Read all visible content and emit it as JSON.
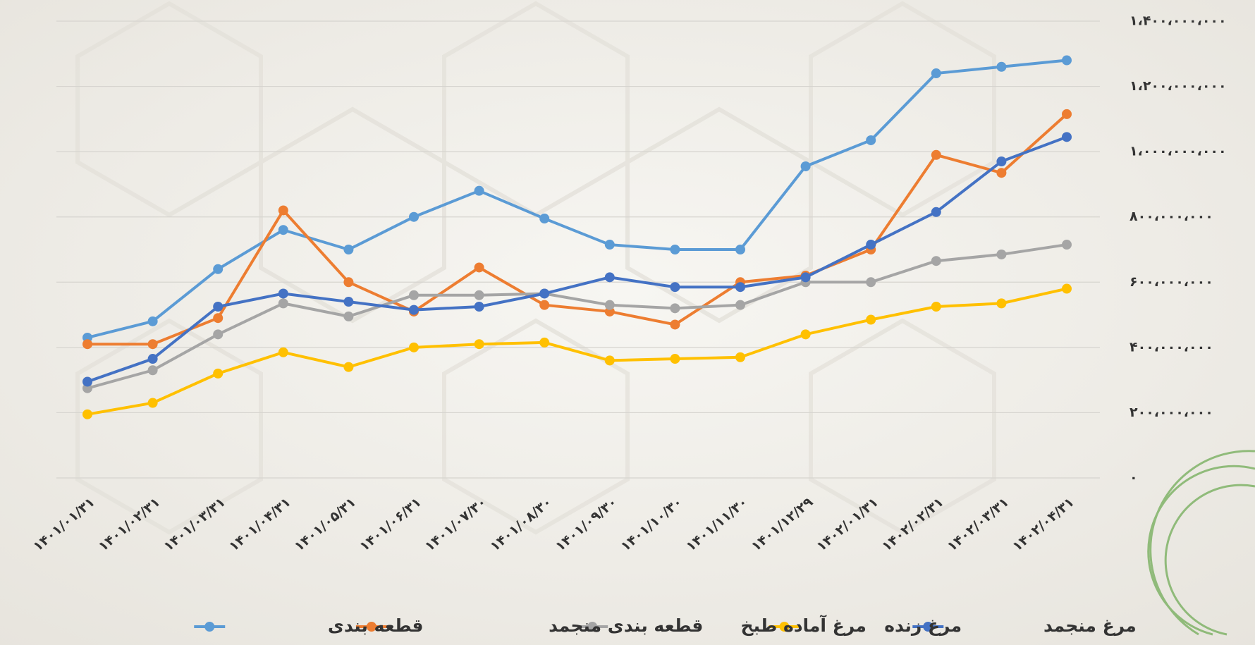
{
  "chart_data": {
    "type": "line",
    "categories": [
      "۱۴۰۱/۰۱/۳۱",
      "۱۴۰۱/۰۲/۳۱",
      "۱۴۰۱/۰۳/۳۱",
      "۱۴۰۱/۰۴/۳۱",
      "۱۴۰۱/۰۵/۳۱",
      "۱۴۰۱/۰۶/۳۱",
      "۱۴۰۱/۰۷/۳۰",
      "۱۴۰۱/۰۸/۳۰",
      "۱۴۰۱/۰۹/۳۰",
      "۱۴۰۱/۱۰/۳۰",
      "۱۴۰۱/۱۱/۳۰",
      "۱۴۰۱/۱۲/۲۹",
      "۱۴۰۲/۰۱/۳۱",
      "۱۴۰۲/۰۲/۳۱",
      "۱۴۰۲/۰۳/۳۱",
      "۱۴۰۲/۰۴/۳۱"
    ],
    "series": [
      {
        "name": "قطعه بندی",
        "color": "#5b9bd5",
        "values": [
          430000000,
          480000000,
          640000000,
          760000000,
          700000000,
          800000000,
          880000000,
          795000000,
          715000000,
          700000000,
          700000000,
          955000000,
          1035000000,
          1240000000,
          1260000000,
          1280000000
        ]
      },
      {
        "name": "قطعه بندی منجمد",
        "color": "#ed7d31",
        "values": [
          410000000,
          410000000,
          490000000,
          820000000,
          600000000,
          510000000,
          645000000,
          530000000,
          510000000,
          470000000,
          600000000,
          620000000,
          700000000,
          990000000,
          935000000,
          1115000000
        ]
      },
      {
        "name": "مرغ آماده طبخ",
        "color": "#a5a5a5",
        "values": [
          275000000,
          330000000,
          440000000,
          535000000,
          495000000,
          560000000,
          560000000,
          565000000,
          530000000,
          520000000,
          530000000,
          600000000,
          600000000,
          665000000,
          685000000,
          715000000
        ]
      },
      {
        "name": "مرغ زنده",
        "color": "#ffc000",
        "values": [
          195000000,
          230000000,
          320000000,
          385000000,
          340000000,
          400000000,
          410000000,
          415000000,
          360000000,
          365000000,
          370000000,
          440000000,
          485000000,
          525000000,
          535000000,
          580000000
        ]
      },
      {
        "name": "مرغ منجمد",
        "color": "#4472c4",
        "values": [
          295000000,
          365000000,
          525000000,
          565000000,
          540000000,
          515000000,
          525000000,
          565000000,
          615000000,
          585000000,
          585000000,
          615000000,
          715000000,
          815000000,
          970000000,
          1045000000
        ]
      }
    ],
    "ylim": [
      0,
      1400000000
    ],
    "yticks": [
      {
        "value": 0,
        "label": "۰"
      },
      {
        "value": 200000000,
        "label": "۲۰۰،۰۰۰،۰۰۰"
      },
      {
        "value": 400000000,
        "label": "۴۰۰،۰۰۰،۰۰۰"
      },
      {
        "value": 600000000,
        "label": "۶۰۰،۰۰۰،۰۰۰"
      },
      {
        "value": 800000000,
        "label": "۸۰۰،۰۰۰،۰۰۰"
      },
      {
        "value": 1000000000,
        "label": "۱،۰۰۰،۰۰۰،۰۰۰"
      },
      {
        "value": 1200000000,
        "label": "۱،۲۰۰،۰۰۰،۰۰۰"
      },
      {
        "value": 1400000000,
        "label": "۱،۴۰۰،۰۰۰،۰۰۰"
      }
    ],
    "grid": true,
    "legend": "bottom"
  }
}
